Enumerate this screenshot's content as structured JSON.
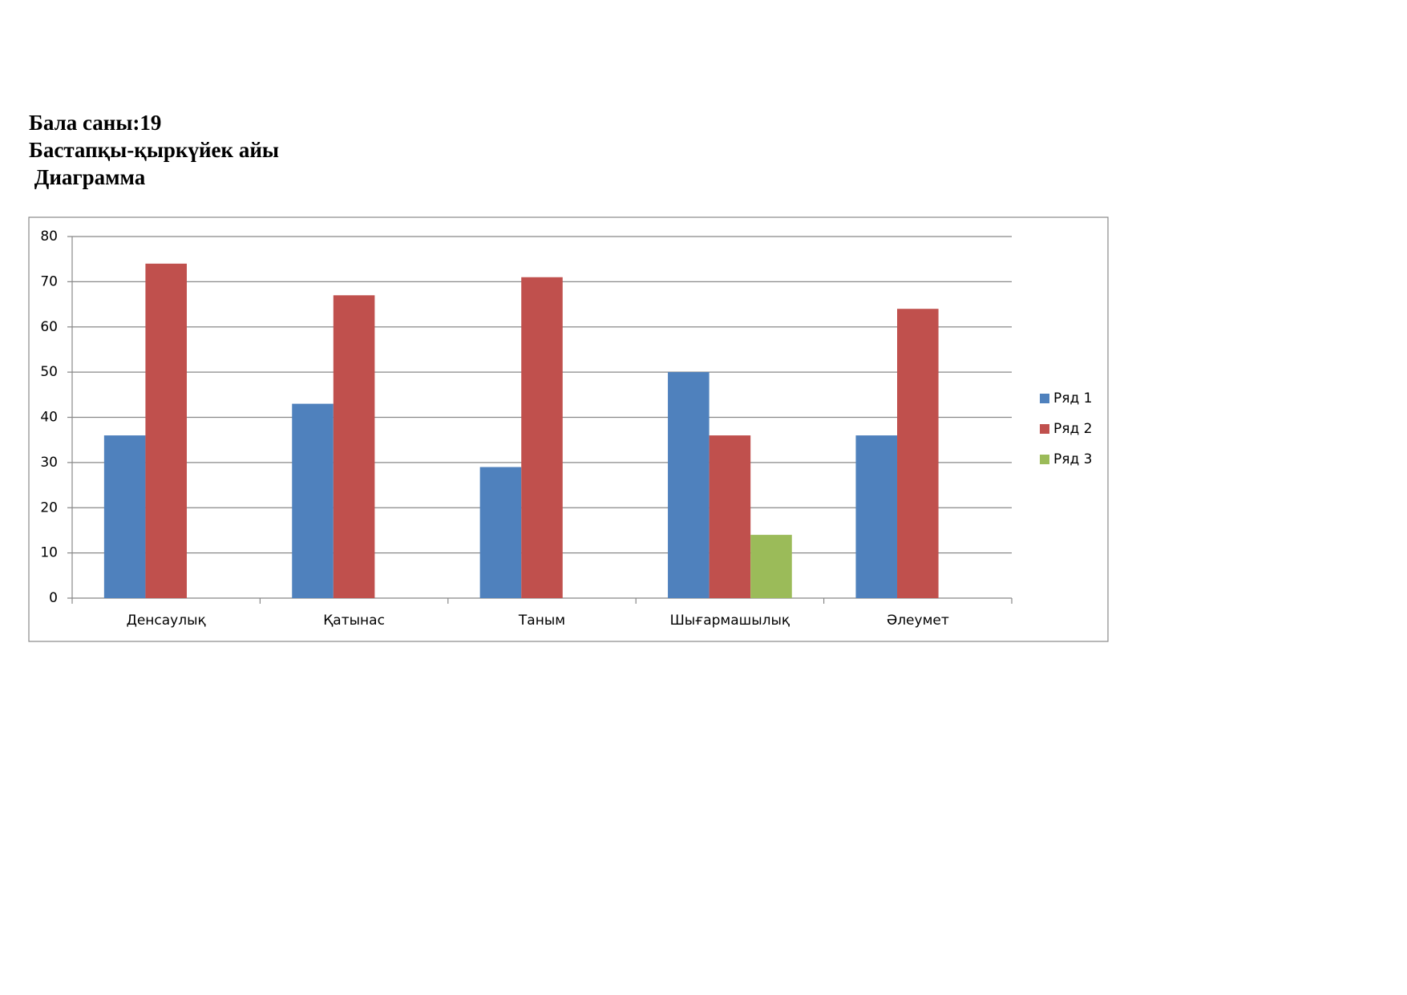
{
  "header": {
    "lines": [
      "Бала саны:19",
      "Бастапқы-қыркүйек айы",
      " Диаграмма"
    ]
  },
  "chart_data": {
    "type": "bar",
    "categories": [
      "Денсаулық",
      "Қатынас",
      "Таным",
      "Шығармашылық",
      "Әлеумет"
    ],
    "series": [
      {
        "name": "Ряд 1",
        "color": "#4f81bd",
        "values": [
          36,
          43,
          29,
          50,
          36
        ]
      },
      {
        "name": "Ряд 2",
        "color": "#c0504d",
        "values": [
          74,
          67,
          71,
          36,
          64
        ]
      },
      {
        "name": "Ряд 3",
        "color": "#9bbb59",
        "values": [
          null,
          null,
          null,
          14,
          null
        ]
      }
    ],
    "ylim": [
      0,
      80
    ],
    "yticks": [
      0,
      10,
      20,
      30,
      40,
      50,
      60,
      70,
      80
    ],
    "grid": true,
    "legend": "right"
  }
}
